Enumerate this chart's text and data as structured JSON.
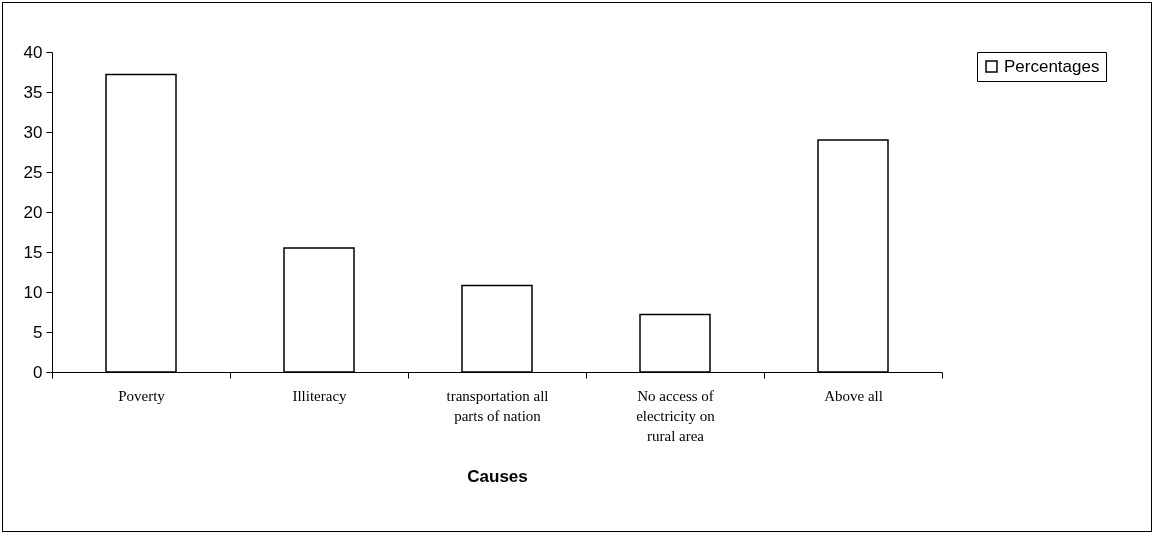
{
  "chart_data": {
    "type": "bar",
    "xlabel": "Causes",
    "categories": [
      "Poverty",
      "Illiteracy",
      "transportation all parts of nation",
      "No access of electricity on rural area",
      "Above all"
    ],
    "series": [
      {
        "name": "Percentages",
        "color": "#ffffff",
        "values": [
          37.2,
          15.5,
          10.8,
          7.2,
          29
        ]
      }
    ],
    "ylim": [
      0,
      40
    ],
    "yticks": [
      0,
      5,
      10,
      15,
      20,
      25,
      30,
      35,
      40
    ],
    "grid": false,
    "legend": "right"
  }
}
